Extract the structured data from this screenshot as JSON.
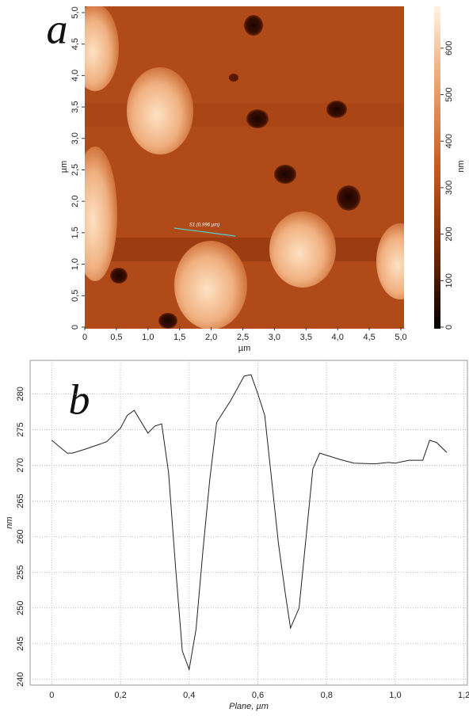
{
  "chart_data": [
    {
      "type": "image",
      "panel": "a",
      "xlabel": "µm",
      "ylabel": "µm",
      "zlabel": "nm",
      "annotations": [
        "S1 (0,996 µm)"
      ],
      "xlim": [
        0,
        5.05
      ],
      "ylim": [
        0,
        5.1
      ],
      "zlim": [
        0,
        690
      ],
      "xticks": [
        0,
        {
          "value": 0.5,
          "label": "0,5"
        },
        {
          "value": 1,
          "label": "1,0"
        },
        {
          "value": 1.5,
          "label": "1,5"
        },
        {
          "value": 2,
          "label": "2,0"
        },
        {
          "value": 2.5,
          "label": "2,5"
        },
        {
          "value": 3,
          "label": "3,0"
        },
        {
          "value": 3.5,
          "label": "3,5"
        },
        {
          "value": 4,
          "label": "4,0"
        },
        {
          "value": 4.5,
          "label": "4,5"
        },
        {
          "value": 5,
          "label": "5,0"
        }
      ],
      "yticks": [
        0,
        {
          "value": 0.5,
          "label": "0,5"
        },
        {
          "value": 1,
          "label": "1,0"
        },
        {
          "value": 1.5,
          "label": "1,5"
        },
        {
          "value": 2,
          "label": "2,0"
        },
        {
          "value": 2.5,
          "label": "2,5"
        },
        {
          "value": 3,
          "label": "3,0"
        },
        {
          "value": 3.5,
          "label": "3,5"
        },
        {
          "value": 4,
          "label": "4,0"
        },
        {
          "value": 4.5,
          "label": "4,5"
        },
        {
          "value": 5,
          "label": "5,0"
        }
      ],
      "zticks": [
        0,
        100,
        200,
        300,
        400,
        500,
        600
      ]
    },
    {
      "type": "line",
      "panel": "b",
      "xlabel": "Plane, µm",
      "ylabel": "nm",
      "grid": true,
      "color": "#222222",
      "xlim": [
        -0.063,
        1.21
      ],
      "ylim": [
        239.2,
        284.7
      ],
      "xticks": [
        0,
        {
          "value": 0.2,
          "label": "0,2"
        },
        {
          "value": 0.4,
          "label": "0,4"
        },
        {
          "value": 0.6,
          "label": "0,6"
        },
        {
          "value": 0.8,
          "label": "0,8"
        },
        {
          "value": 1,
          "label": "1,0"
        },
        {
          "value": 1.2,
          "label": "1,2"
        }
      ],
      "yticks": [
        240,
        245,
        250,
        255,
        260,
        265,
        270,
        275,
        280
      ],
      "x": [
        0,
        0.045,
        0.06,
        0.1,
        0.16,
        0.2,
        0.22,
        0.24,
        0.28,
        0.3,
        0.32,
        0.34,
        0.36,
        0.38,
        0.4,
        0.42,
        0.44,
        0.46,
        0.48,
        0.52,
        0.56,
        0.58,
        0.6,
        0.62,
        0.64,
        0.66,
        0.68,
        0.695,
        0.72,
        0.76,
        0.78,
        0.84,
        0.88,
        0.94,
        0.98,
        1.0,
        1.04,
        1.08,
        1.1,
        1.12,
        1.15
      ],
      "values": [
        273.5,
        271.7,
        271.7,
        272.3,
        273.3,
        275.2,
        277,
        277.7,
        274.5,
        275.5,
        275.8,
        269,
        256,
        244,
        241.4,
        247,
        258,
        268,
        276,
        279,
        282.5,
        282.7,
        280,
        277,
        268,
        259,
        252,
        247.2,
        250,
        269.5,
        271.7,
        270.8,
        270.3,
        270.2,
        270.4,
        270.3,
        270.7,
        270.7,
        273.5,
        273.2,
        271.8
      ]
    }
  ]
}
